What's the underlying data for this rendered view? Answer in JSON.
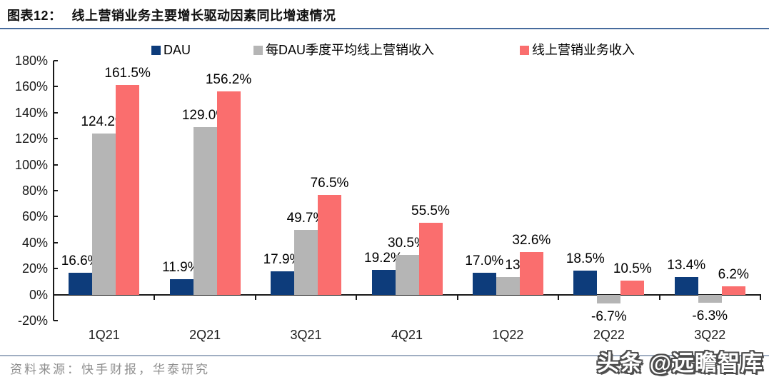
{
  "header": {
    "figure_label": "图表12：",
    "title": "线上营销业务主要增长驱动因素同比增速情况"
  },
  "chart_data": {
    "type": "bar",
    "title": "线上营销业务主要增长驱动因素同比增速情况",
    "categories": [
      "1Q21",
      "2Q21",
      "3Q21",
      "4Q21",
      "1Q22",
      "2Q22",
      "3Q22"
    ],
    "series": [
      {
        "name": "DAU",
        "color": "#0D3C7B",
        "values": [
          16.6,
          11.9,
          17.9,
          19.2,
          17.0,
          18.5,
          13.4
        ]
      },
      {
        "name": "每DAU季度平均线上营销收入",
        "color": "#B5B5B5",
        "values": [
          124.2,
          129.0,
          49.7,
          30.5,
          13.4,
          -6.7,
          -6.3
        ]
      },
      {
        "name": "线上营销业务收入",
        "color": "#FA6E6E",
        "values": [
          161.5,
          156.2,
          76.5,
          55.5,
          32.6,
          10.5,
          6.2
        ]
      }
    ],
    "xlabel": "",
    "ylabel": "",
    "ylim": [
      -20,
      180
    ],
    "ytick_step": 20,
    "ytick_suffix": "%",
    "grid": false,
    "legend_position": "top",
    "value_labels": "one_decimal_percent"
  },
  "footer": {
    "source": "资料来源：快手财报，华泰研究",
    "watermark": "头条 @远瞻智库"
  },
  "colors": {
    "title_rule": "#476B9D",
    "footer_rule": "#A0AEC2",
    "axis": "#1A1A1A",
    "label_text": "#000000"
  }
}
